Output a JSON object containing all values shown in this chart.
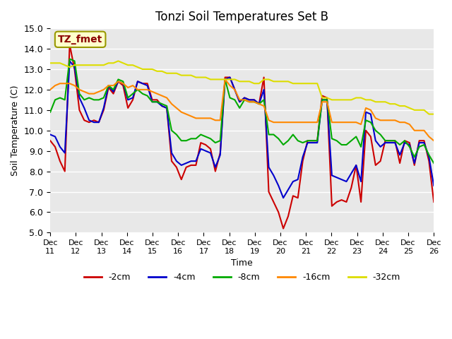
{
  "title": "Tonzi Soil Temperatures Set B",
  "xlabel": "Time",
  "ylabel": "Soil Temperature (C)",
  "ylim": [
    5.0,
    15.0
  ],
  "yticks": [
    5.0,
    6.0,
    7.0,
    8.0,
    9.0,
    10.0,
    11.0,
    12.0,
    13.0,
    14.0,
    15.0
  ],
  "xtick_labels": [
    "Dec 11",
    "Dec 12",
    "Dec 13",
    "Dec 14",
    "Dec 15",
    "Dec 16",
    "Dec 17",
    "Dec 18",
    "Dec 19",
    "Dec 20",
    "Dec 21",
    "Dec 22",
    "Dec 23",
    "Dec 24",
    "Dec 25",
    "Dec 26"
  ],
  "colors": {
    "-2cm": "#cc0000",
    "-4cm": "#0000cc",
    "-8cm": "#00aa00",
    "-16cm": "#ff8800",
    "-32cm": "#dddd00"
  },
  "legend_label": "TZ_fmet",
  "bg_color": "#e8e8e8",
  "plot_bg": "#e8e8e8",
  "series": {
    "-2cm": [
      9.5,
      9.2,
      8.5,
      8.0,
      14.2,
      13.0,
      11.0,
      10.5,
      10.4,
      10.5,
      10.4,
      11.0,
      12.1,
      11.8,
      12.4,
      12.2,
      11.1,
      11.5,
      12.4,
      12.3,
      12.3,
      11.5,
      11.5,
      11.2,
      11.1,
      8.5,
      8.2,
      7.6,
      8.2,
      8.3,
      8.3,
      9.4,
      9.3,
      9.1,
      8.0,
      8.9,
      12.6,
      12.6,
      12.0,
      11.4,
      11.6,
      11.5,
      11.5,
      11.3,
      12.6,
      7.0,
      6.5,
      6.0,
      5.2,
      5.8,
      6.8,
      6.7,
      8.5,
      9.5,
      9.5,
      9.5,
      11.7,
      11.6,
      6.3,
      6.5,
      6.6,
      6.5,
      7.2,
      8.3,
      6.5,
      10.0,
      9.7,
      8.3,
      8.5,
      9.5,
      9.5,
      9.5,
      8.4,
      9.5,
      9.4,
      8.3,
      9.5,
      9.5,
      8.5,
      6.5
    ],
    "-4cm": [
      9.8,
      9.7,
      9.2,
      8.9,
      13.4,
      13.1,
      11.6,
      11.1,
      10.5,
      10.4,
      10.4,
      11.1,
      12.2,
      11.9,
      12.4,
      12.3,
      11.5,
      11.6,
      12.4,
      12.3,
      12.2,
      11.4,
      11.4,
      11.2,
      11.1,
      8.9,
      8.5,
      8.3,
      8.4,
      8.5,
      8.5,
      9.1,
      9.0,
      8.9,
      8.2,
      8.8,
      12.5,
      12.6,
      12.0,
      11.4,
      11.6,
      11.5,
      11.5,
      11.3,
      12.0,
      8.2,
      7.8,
      7.3,
      6.7,
      7.1,
      7.5,
      7.6,
      8.7,
      9.4,
      9.4,
      9.4,
      11.5,
      11.5,
      7.8,
      7.7,
      7.6,
      7.5,
      7.9,
      8.3,
      7.5,
      10.9,
      10.8,
      9.5,
      9.2,
      9.4,
      9.4,
      9.4,
      8.8,
      9.4,
      9.3,
      8.4,
      9.4,
      9.4,
      8.7,
      7.3
    ],
    "-8cm": [
      10.9,
      11.5,
      11.6,
      11.5,
      13.5,
      13.4,
      11.8,
      11.5,
      11.6,
      11.5,
      11.5,
      11.6,
      12.2,
      12.0,
      12.5,
      12.4,
      11.6,
      11.8,
      12.0,
      11.8,
      11.7,
      11.4,
      11.4,
      11.3,
      11.2,
      10.0,
      9.8,
      9.5,
      9.5,
      9.6,
      9.6,
      9.8,
      9.7,
      9.6,
      9.4,
      9.5,
      12.5,
      11.6,
      11.5,
      11.1,
      11.5,
      11.4,
      11.4,
      11.3,
      11.5,
      9.8,
      9.8,
      9.6,
      9.3,
      9.5,
      9.8,
      9.5,
      9.4,
      9.5,
      9.5,
      9.5,
      11.5,
      11.5,
      9.6,
      9.5,
      9.3,
      9.3,
      9.5,
      9.7,
      9.2,
      10.5,
      10.4,
      10.0,
      9.8,
      9.5,
      9.5,
      9.5,
      9.3,
      9.5,
      9.2,
      8.7,
      9.2,
      9.3,
      8.8,
      8.4
    ],
    "-16cm": [
      12.0,
      12.2,
      12.3,
      12.3,
      12.3,
      12.2,
      12.0,
      11.9,
      11.8,
      11.8,
      11.9,
      12.0,
      12.2,
      12.2,
      12.4,
      12.3,
      12.1,
      12.2,
      12.0,
      12.0,
      12.0,
      11.9,
      11.8,
      11.7,
      11.6,
      11.3,
      11.1,
      10.9,
      10.8,
      10.7,
      10.6,
      10.6,
      10.6,
      10.6,
      10.5,
      10.5,
      12.5,
      12.2,
      12.0,
      11.5,
      11.5,
      11.4,
      11.4,
      11.3,
      11.2,
      10.5,
      10.4,
      10.4,
      10.4,
      10.4,
      10.4,
      10.4,
      10.4,
      10.4,
      10.4,
      10.4,
      11.4,
      11.4,
      10.4,
      10.4,
      10.4,
      10.4,
      10.4,
      10.4,
      10.3,
      11.1,
      11.0,
      10.6,
      10.5,
      10.5,
      10.5,
      10.5,
      10.4,
      10.4,
      10.3,
      10.0,
      10.0,
      10.0,
      9.7,
      9.5
    ],
    "-32cm": [
      13.3,
      13.3,
      13.3,
      13.2,
      13.1,
      13.2,
      13.2,
      13.2,
      13.2,
      13.2,
      13.2,
      13.2,
      13.3,
      13.3,
      13.4,
      13.3,
      13.2,
      13.2,
      13.1,
      13.0,
      13.0,
      13.0,
      12.9,
      12.9,
      12.8,
      12.8,
      12.8,
      12.7,
      12.7,
      12.7,
      12.6,
      12.6,
      12.6,
      12.5,
      12.5,
      12.5,
      12.5,
      12.5,
      12.5,
      12.4,
      12.4,
      12.4,
      12.3,
      12.3,
      12.5,
      12.5,
      12.4,
      12.4,
      12.4,
      12.4,
      12.3,
      12.3,
      12.3,
      12.3,
      12.3,
      12.3,
      11.6,
      11.6,
      11.5,
      11.5,
      11.5,
      11.5,
      11.5,
      11.6,
      11.6,
      11.5,
      11.5,
      11.4,
      11.4,
      11.4,
      11.3,
      11.3,
      11.2,
      11.2,
      11.1,
      11.0,
      11.0,
      11.0,
      10.8,
      10.8
    ]
  }
}
